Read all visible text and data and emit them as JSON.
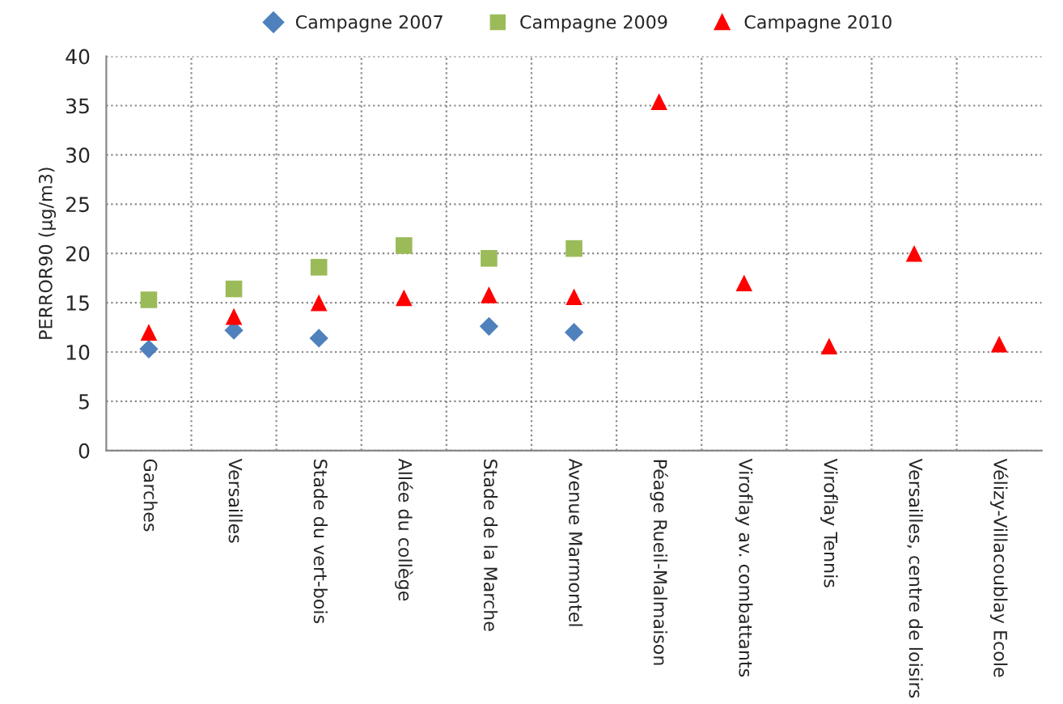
{
  "chart_data": {
    "type": "scatter",
    "ylabel": "PERROR90 (µg/m3)",
    "categories": [
      "Garches",
      "Versailles",
      "Stade du vert-bois",
      "Allée du collège",
      "Stade de la Marche",
      "Avenue Marmontel",
      "Péage Rueil-Malmaison",
      "Viroflay av. combattants",
      "Viroflay Tennis",
      "Versailles, centre de loisirs",
      "Vélizy-Villacoublay Ecole"
    ],
    "series": [
      {
        "name": "Campagne 2007",
        "color": "#4f81bd",
        "marker": "diamond",
        "values": [
          10.3,
          12.2,
          11.4,
          null,
          12.6,
          12.0,
          null,
          null,
          null,
          null,
          null
        ]
      },
      {
        "name": "Campagne 2009",
        "color": "#9bbb59",
        "marker": "square",
        "values": [
          15.3,
          16.4,
          18.6,
          20.8,
          19.5,
          20.5,
          null,
          null,
          null,
          null,
          null
        ]
      },
      {
        "name": "Campagne 2010",
        "color": "#ff0000",
        "marker": "triangle",
        "values": [
          12.0,
          13.6,
          15.0,
          15.5,
          15.8,
          15.6,
          35.4,
          17.0,
          10.6,
          20.0,
          10.8
        ]
      }
    ],
    "ylim": [
      0,
      40
    ],
    "yticks": [
      0,
      5,
      10,
      15,
      20,
      25,
      30,
      35,
      40
    ],
    "grid": true,
    "legend": "top"
  }
}
